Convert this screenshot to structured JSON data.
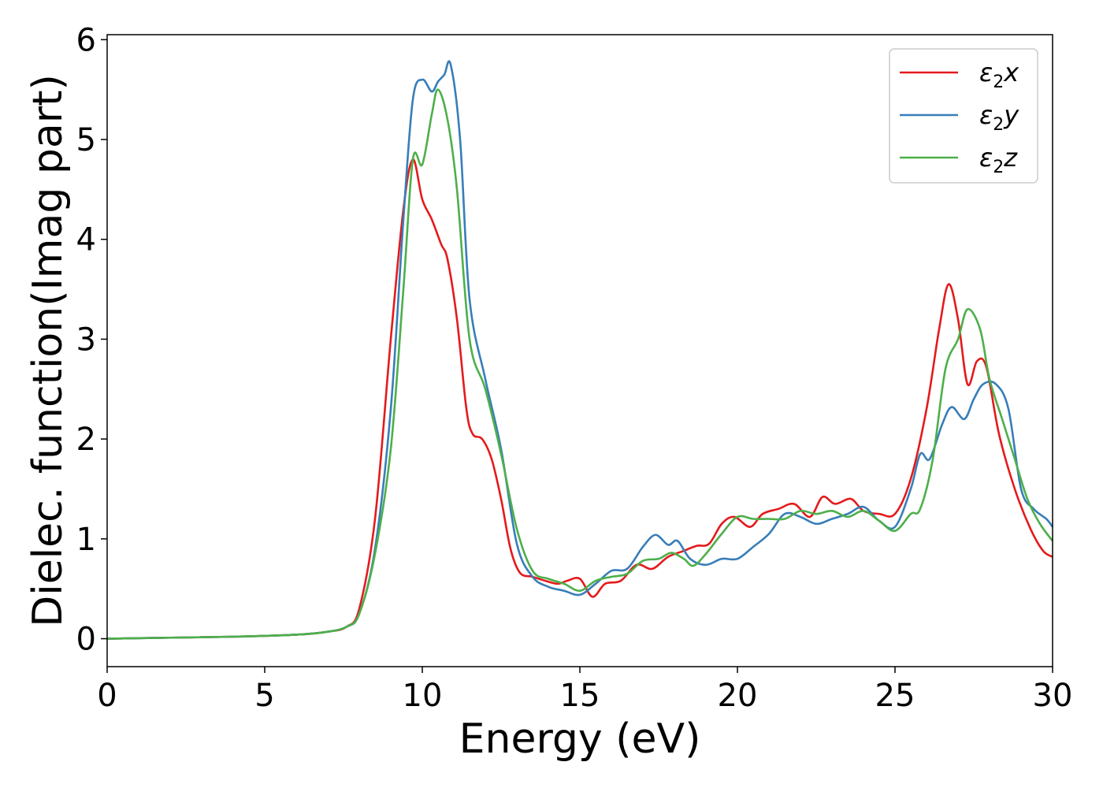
{
  "chart_data": {
    "type": "line",
    "title": "",
    "xlabel": "Energy (eV)",
    "ylabel": "Dielec. function(Imag part)",
    "xlim": [
      0,
      30
    ],
    "ylim": [
      -0.28,
      6.05
    ],
    "xticks": [
      0,
      5,
      10,
      15,
      20,
      25,
      30
    ],
    "yticks": [
      0,
      1,
      2,
      3,
      4,
      5,
      6
    ],
    "grid": false,
    "legend_position": "top-right",
    "series": [
      {
        "name": "ε2x",
        "name_base": "ε",
        "name_sub": "2",
        "name_var": "x",
        "color": "#e41a1c",
        "points": [
          [
            0,
            0
          ],
          [
            2,
            0.01
          ],
          [
            4,
            0.02
          ],
          [
            6,
            0.04
          ],
          [
            7,
            0.07
          ],
          [
            7.6,
            0.12
          ],
          [
            8,
            0.3
          ],
          [
            8.5,
            1.2
          ],
          [
            9,
            3.0
          ],
          [
            9.4,
            4.3
          ],
          [
            9.7,
            4.8
          ],
          [
            10,
            4.4
          ],
          [
            10.3,
            4.2
          ],
          [
            10.6,
            3.95
          ],
          [
            10.8,
            3.8
          ],
          [
            11.1,
            3.2
          ],
          [
            11.4,
            2.3
          ],
          [
            11.6,
            2.05
          ],
          [
            11.9,
            2.0
          ],
          [
            12.2,
            1.8
          ],
          [
            12.5,
            1.4
          ],
          [
            12.8,
            0.9
          ],
          [
            13.1,
            0.66
          ],
          [
            13.5,
            0.62
          ],
          [
            13.9,
            0.58
          ],
          [
            14.3,
            0.55
          ],
          [
            14.6,
            0.58
          ],
          [
            15.0,
            0.6
          ],
          [
            15.4,
            0.42
          ],
          [
            15.8,
            0.55
          ],
          [
            16.3,
            0.58
          ],
          [
            16.8,
            0.74
          ],
          [
            17.3,
            0.7
          ],
          [
            17.8,
            0.82
          ],
          [
            18.3,
            0.88
          ],
          [
            18.7,
            0.93
          ],
          [
            19.1,
            0.95
          ],
          [
            19.5,
            1.15
          ],
          [
            19.9,
            1.22
          ],
          [
            20.4,
            1.12
          ],
          [
            20.8,
            1.25
          ],
          [
            21.3,
            1.3
          ],
          [
            21.8,
            1.35
          ],
          [
            22.3,
            1.22
          ],
          [
            22.7,
            1.42
          ],
          [
            23.1,
            1.35
          ],
          [
            23.6,
            1.4
          ],
          [
            24.0,
            1.28
          ],
          [
            24.5,
            1.25
          ],
          [
            25.0,
            1.25
          ],
          [
            25.5,
            1.6
          ],
          [
            26.0,
            2.3
          ],
          [
            26.4,
            3.1
          ],
          [
            26.7,
            3.55
          ],
          [
            27.0,
            3.2
          ],
          [
            27.3,
            2.55
          ],
          [
            27.6,
            2.78
          ],
          [
            27.9,
            2.72
          ],
          [
            28.3,
            2.05
          ],
          [
            28.8,
            1.5
          ],
          [
            29.3,
            1.1
          ],
          [
            29.7,
            0.88
          ],
          [
            30,
            0.82
          ]
        ]
      },
      {
        "name": "ε2y",
        "name_base": "ε",
        "name_sub": "2",
        "name_var": "y",
        "color": "#377eb8",
        "points": [
          [
            0,
            0
          ],
          [
            2,
            0.01
          ],
          [
            4,
            0.02
          ],
          [
            6,
            0.04
          ],
          [
            7,
            0.07
          ],
          [
            7.6,
            0.12
          ],
          [
            8,
            0.25
          ],
          [
            8.5,
            0.9
          ],
          [
            9,
            2.3
          ],
          [
            9.4,
            4.2
          ],
          [
            9.7,
            5.4
          ],
          [
            10,
            5.6
          ],
          [
            10.3,
            5.48
          ],
          [
            10.5,
            5.58
          ],
          [
            10.7,
            5.65
          ],
          [
            10.9,
            5.75
          ],
          [
            11.2,
            5.0
          ],
          [
            11.5,
            3.4
          ],
          [
            12.0,
            2.6
          ],
          [
            12.5,
            1.9
          ],
          [
            13.0,
            0.95
          ],
          [
            13.5,
            0.62
          ],
          [
            14.0,
            0.52
          ],
          [
            14.5,
            0.48
          ],
          [
            15.0,
            0.44
          ],
          [
            15.5,
            0.55
          ],
          [
            16.0,
            0.68
          ],
          [
            16.5,
            0.7
          ],
          [
            17.0,
            0.92
          ],
          [
            17.4,
            1.04
          ],
          [
            17.8,
            0.94
          ],
          [
            18.1,
            0.98
          ],
          [
            18.5,
            0.8
          ],
          [
            19.0,
            0.74
          ],
          [
            19.5,
            0.8
          ],
          [
            20.0,
            0.8
          ],
          [
            20.5,
            0.92
          ],
          [
            21.0,
            1.05
          ],
          [
            21.5,
            1.25
          ],
          [
            22.0,
            1.22
          ],
          [
            22.5,
            1.15
          ],
          [
            23.0,
            1.2
          ],
          [
            23.5,
            1.25
          ],
          [
            24.0,
            1.32
          ],
          [
            24.5,
            1.18
          ],
          [
            25.0,
            1.12
          ],
          [
            25.5,
            1.5
          ],
          [
            25.8,
            1.85
          ],
          [
            26.1,
            1.8
          ],
          [
            26.5,
            2.15
          ],
          [
            26.8,
            2.32
          ],
          [
            27.2,
            2.2
          ],
          [
            27.5,
            2.4
          ],
          [
            27.8,
            2.55
          ],
          [
            28.2,
            2.55
          ],
          [
            28.6,
            2.3
          ],
          [
            29.0,
            1.5
          ],
          [
            29.4,
            1.3
          ],
          [
            29.8,
            1.2
          ],
          [
            30,
            1.12
          ]
        ]
      },
      {
        "name": "ε2z",
        "name_base": "ε",
        "name_sub": "2",
        "name_var": "z",
        "color": "#4daf4a",
        "points": [
          [
            0,
            0
          ],
          [
            2,
            0.01
          ],
          [
            4,
            0.02
          ],
          [
            6,
            0.04
          ],
          [
            7,
            0.07
          ],
          [
            7.6,
            0.12
          ],
          [
            8,
            0.25
          ],
          [
            8.5,
            0.85
          ],
          [
            9,
            1.9
          ],
          [
            9.4,
            3.5
          ],
          [
            9.7,
            4.8
          ],
          [
            10,
            4.75
          ],
          [
            10.3,
            5.25
          ],
          [
            10.5,
            5.5
          ],
          [
            10.8,
            5.2
          ],
          [
            11.1,
            4.5
          ],
          [
            11.5,
            3.0
          ],
          [
            12.0,
            2.5
          ],
          [
            12.5,
            1.85
          ],
          [
            13.0,
            1.1
          ],
          [
            13.5,
            0.68
          ],
          [
            14.0,
            0.6
          ],
          [
            14.5,
            0.55
          ],
          [
            15.0,
            0.48
          ],
          [
            15.5,
            0.58
          ],
          [
            16.0,
            0.62
          ],
          [
            16.5,
            0.65
          ],
          [
            17.0,
            0.78
          ],
          [
            17.5,
            0.8
          ],
          [
            17.9,
            0.86
          ],
          [
            18.3,
            0.8
          ],
          [
            18.6,
            0.73
          ],
          [
            19.0,
            0.85
          ],
          [
            19.5,
            1.05
          ],
          [
            20.0,
            1.22
          ],
          [
            20.5,
            1.2
          ],
          [
            21.0,
            1.2
          ],
          [
            21.5,
            1.2
          ],
          [
            22.0,
            1.28
          ],
          [
            22.5,
            1.25
          ],
          [
            23.0,
            1.28
          ],
          [
            23.5,
            1.22
          ],
          [
            24.0,
            1.28
          ],
          [
            24.5,
            1.18
          ],
          [
            25.0,
            1.08
          ],
          [
            25.5,
            1.25
          ],
          [
            25.8,
            1.3
          ],
          [
            26.2,
            1.8
          ],
          [
            26.6,
            2.7
          ],
          [
            27.0,
            3.0
          ],
          [
            27.3,
            3.3
          ],
          [
            27.7,
            3.1
          ],
          [
            28.0,
            2.6
          ],
          [
            28.4,
            2.2
          ],
          [
            28.8,
            1.8
          ],
          [
            29.2,
            1.4
          ],
          [
            29.6,
            1.15
          ],
          [
            30,
            0.98
          ]
        ]
      }
    ]
  }
}
